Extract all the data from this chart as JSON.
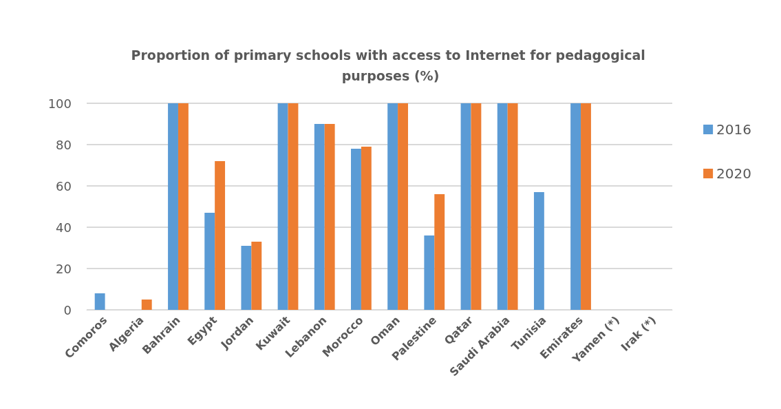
{
  "chart_data": {
    "type": "bar",
    "title": "Proportion of primary schools with access to Internet for pedagogical purposes (%)",
    "categories": [
      "Comoros",
      "Algeria",
      "Bahrain",
      "Egypt",
      "Jordan",
      "Kuwait",
      "Lebanon",
      "Morocco",
      "Oman",
      "Palestine",
      "Qatar",
      "Saudi Arabia",
      "Tunisia",
      "Emirates",
      "Yamen (*)",
      "Irak (*)"
    ],
    "series": [
      {
        "name": "2016",
        "color": "#5b9bd5",
        "values": [
          8,
          null,
          100,
          47,
          31,
          100,
          90,
          78,
          100,
          36,
          100,
          100,
          57,
          100,
          0,
          0
        ]
      },
      {
        "name": "2020",
        "color": "#ed7d31",
        "values": [
          null,
          5,
          100,
          72,
          33,
          100,
          90,
          79,
          100,
          56,
          100,
          100,
          null,
          100,
          0,
          0
        ]
      }
    ],
    "ylim": [
      0,
      100
    ],
    "yticks": [
      0,
      20,
      40,
      60,
      80,
      100
    ],
    "grid": "y",
    "legend": "right"
  }
}
